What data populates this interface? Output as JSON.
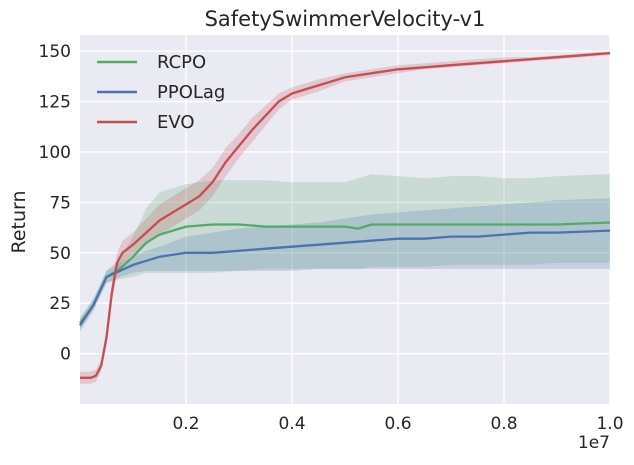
{
  "chart_data": {
    "type": "line",
    "title": "SafetySwimmerVelocity-v1",
    "xlabel": "",
    "ylabel": "Return",
    "x_multiplier_label": "1e7",
    "xlim": [
      0,
      10000000
    ],
    "ylim": [
      -25,
      158
    ],
    "xticks": [
      2000000,
      4000000,
      6000000,
      8000000,
      10000000
    ],
    "xtick_labels": [
      "0.2",
      "0.4",
      "0.6",
      "0.8",
      "1.0"
    ],
    "yticks": [
      0,
      25,
      50,
      75,
      100,
      125,
      150
    ],
    "ytick_labels": [
      "0",
      "25",
      "50",
      "75",
      "100",
      "125",
      "150"
    ],
    "grid": true,
    "legend_position": "top-left",
    "background": "#eaeaf2",
    "series": [
      {
        "name": "RCPO",
        "color": "#55a868",
        "x": [
          0,
          250000,
          500000,
          750000,
          1000000,
          1250000,
          1500000,
          2000000,
          2500000,
          3000000,
          3500000,
          4000000,
          4500000,
          5000000,
          5250000,
          5500000,
          6000000,
          6500000,
          7000000,
          7500000,
          8000000,
          8500000,
          9000000,
          10000000
        ],
        "y": [
          15,
          24,
          38,
          42,
          48,
          55,
          59,
          63,
          64,
          64,
          63,
          63,
          63,
          63,
          62,
          64,
          64,
          64,
          64,
          64,
          64,
          64,
          64,
          65
        ],
        "lower": [
          12,
          22,
          35,
          37,
          38,
          40,
          40,
          40,
          40,
          41,
          42,
          42,
          42,
          42,
          42,
          43,
          43,
          43,
          44,
          44,
          44,
          44,
          45,
          45
        ],
        "upper": [
          18,
          27,
          41,
          47,
          58,
          72,
          80,
          84,
          86,
          86,
          86,
          85,
          85,
          85,
          87,
          89,
          88,
          87,
          88,
          88,
          87,
          87,
          88,
          89
        ]
      },
      {
        "name": "PPOLag",
        "color": "#4c72b0",
        "x": [
          0,
          250000,
          500000,
          750000,
          1000000,
          1250000,
          1500000,
          2000000,
          2500000,
          3000000,
          3500000,
          4000000,
          4500000,
          5000000,
          5500000,
          6000000,
          6500000,
          7000000,
          7500000,
          8000000,
          8500000,
          9000000,
          10000000
        ],
        "y": [
          14,
          24,
          38,
          41,
          44,
          46,
          48,
          50,
          50,
          51,
          52,
          53,
          54,
          55,
          56,
          57,
          57,
          58,
          58,
          59,
          60,
          60,
          61
        ],
        "lower": [
          11,
          21,
          35,
          38,
          40,
          41,
          41,
          41,
          41,
          41,
          41,
          41,
          42,
          42,
          42,
          42,
          42,
          42,
          42,
          42,
          42,
          42,
          42
        ],
        "upper": [
          17,
          27,
          41,
          45,
          48,
          51,
          53,
          58,
          60,
          62,
          63,
          64,
          65,
          67,
          69,
          70,
          71,
          72,
          73,
          74,
          75,
          76,
          77
        ]
      },
      {
        "name": "EVO",
        "color": "#c44e52",
        "x": [
          0,
          200000,
          300000,
          400000,
          500000,
          600000,
          700000,
          800000,
          1000000,
          1250000,
          1500000,
          1750000,
          2000000,
          2250000,
          2500000,
          2750000,
          3000000,
          3250000,
          3500000,
          3750000,
          4000000,
          4250000,
          4500000,
          5000000,
          5500000,
          6000000,
          6500000,
          7000000,
          7500000,
          8000000,
          8500000,
          9000000,
          9500000,
          10000000
        ],
        "y": [
          -12,
          -12,
          -11,
          -6,
          8,
          30,
          45,
          50,
          54,
          60,
          66,
          70,
          74,
          78,
          85,
          95,
          103,
          111,
          118,
          125,
          129,
          131,
          133,
          137,
          139,
          141,
          142,
          143,
          144,
          145,
          146,
          147,
          148,
          149
        ],
        "lower": [
          -15,
          -15,
          -14,
          -9,
          4,
          25,
          40,
          45,
          49,
          54,
          59,
          63,
          67,
          71,
          78,
          88,
          97,
          105,
          113,
          121,
          126,
          128,
          130,
          135,
          137,
          139,
          141,
          142,
          143,
          144,
          145,
          146,
          147,
          148
        ],
        "upper": [
          -9,
          -9,
          -8,
          -3,
          12,
          35,
          50,
          56,
          60,
          67,
          74,
          78,
          82,
          86,
          92,
          102,
          109,
          117,
          123,
          129,
          132,
          134,
          136,
          139,
          141,
          143,
          144,
          145,
          146,
          147,
          147,
          148,
          149,
          150
        ]
      }
    ]
  }
}
